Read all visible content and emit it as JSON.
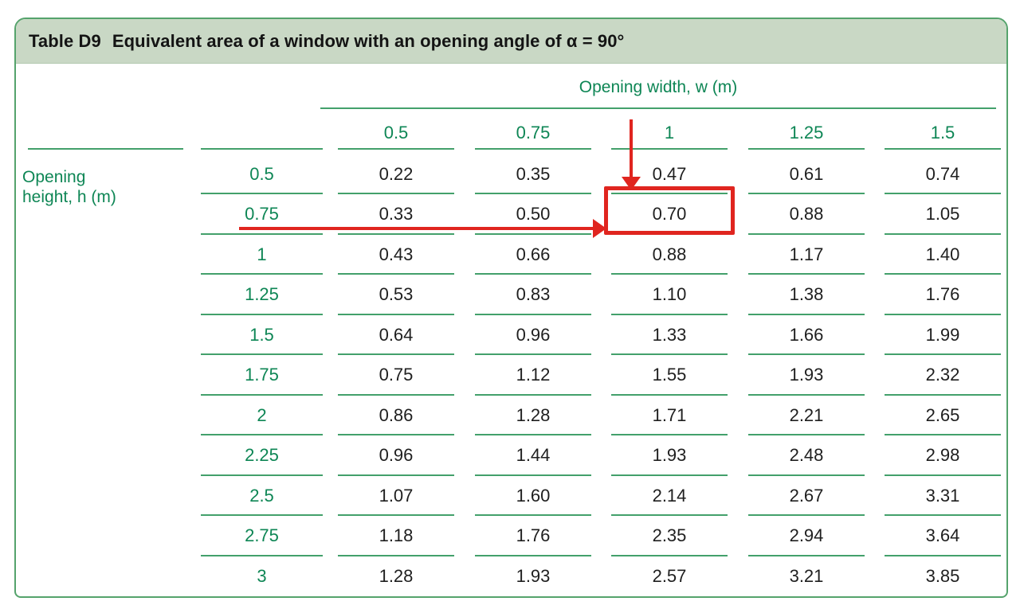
{
  "title": {
    "prefix": "Table D9",
    "text": "Equivalent area of a window with an opening angle of α = 90°"
  },
  "table": {
    "column_group_label": "Opening width, w (m)",
    "row_group_label": "Opening height, h (m)",
    "column_headers": [
      "0.5",
      "0.75",
      "1",
      "1.25",
      "1.5"
    ],
    "rows": [
      {
        "h": "0.5",
        "values": [
          "0.22",
          "0.35",
          "0.47",
          "0.61",
          "0.74"
        ]
      },
      {
        "h": "0.75",
        "values": [
          "0.33",
          "0.50",
          "0.70",
          "0.88",
          "1.05"
        ]
      },
      {
        "h": "1",
        "values": [
          "0.43",
          "0.66",
          "0.88",
          "1.17",
          "1.40"
        ]
      },
      {
        "h": "1.25",
        "values": [
          "0.53",
          "0.83",
          "1.10",
          "1.38",
          "1.76"
        ]
      },
      {
        "h": "1.5",
        "values": [
          "0.64",
          "0.96",
          "1.33",
          "1.66",
          "1.99"
        ]
      },
      {
        "h": "1.75",
        "values": [
          "0.75",
          "1.12",
          "1.55",
          "1.93",
          "2.32"
        ]
      },
      {
        "h": "2",
        "values": [
          "0.86",
          "1.28",
          "1.71",
          "2.21",
          "2.65"
        ]
      },
      {
        "h": "2.25",
        "values": [
          "0.96",
          "1.44",
          "1.93",
          "2.48",
          "2.98"
        ]
      },
      {
        "h": "2.5",
        "values": [
          "1.07",
          "1.60",
          "2.14",
          "2.67",
          "3.31"
        ]
      },
      {
        "h": "2.75",
        "values": [
          "1.18",
          "1.76",
          "2.35",
          "2.94",
          "3.64"
        ]
      },
      {
        "h": "3",
        "values": [
          "1.28",
          "1.93",
          "2.57",
          "3.21",
          "3.85"
        ]
      }
    ],
    "highlight": {
      "row_height": "0.75",
      "column_width": "1",
      "value": "0.70"
    }
  },
  "colors": {
    "green_text": "#0e8655",
    "green_line": "#43a06b",
    "border_green": "#55a36c",
    "band_bg": "#c9d8c5",
    "annotation_red": "#e0251f",
    "data_text": "#1f1f1f"
  }
}
